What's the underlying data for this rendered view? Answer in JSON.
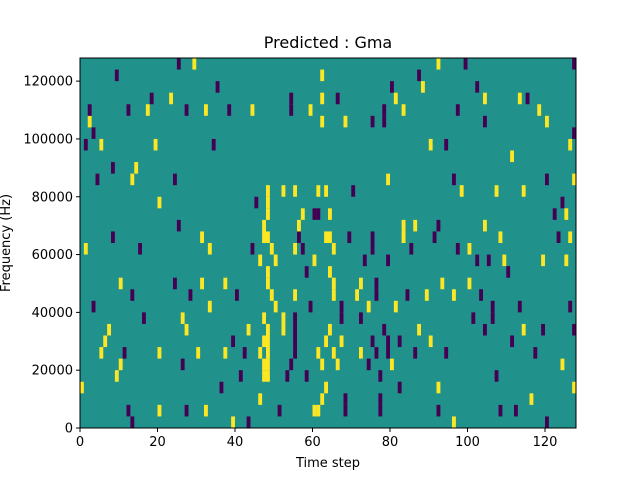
{
  "chart_data": {
    "type": "heatmap",
    "title": "Predicted : Gma",
    "xlabel": "Time step",
    "ylabel": "Frequency (Hz)",
    "xlim": [
      0,
      128
    ],
    "ylim": [
      0,
      128000
    ],
    "xticks": [
      0,
      20,
      40,
      60,
      80,
      100,
      120
    ],
    "xtick_labels": [
      "0",
      "20",
      "40",
      "60",
      "80",
      "100",
      "120"
    ],
    "yticks": [
      0,
      20000,
      40000,
      60000,
      80000,
      100000,
      120000
    ],
    "ytick_labels": [
      "0",
      "20000",
      "40000",
      "60000",
      "80000",
      "100000",
      "120000"
    ],
    "grid": false,
    "colormap": "viridis",
    "levels": [
      -1,
      0,
      1
    ],
    "colors": {
      "-1": "#440154",
      "0": "#21918c",
      "1": "#fde725"
    },
    "background_level": 0,
    "cell_height": 4000,
    "cells": [
      {
        "x": 0,
        "y": 12000,
        "v": 1
      },
      {
        "x": 1,
        "y": 60000,
        "v": 1
      },
      {
        "x": 1,
        "y": 96000,
        "v": -1
      },
      {
        "x": 2,
        "y": 104000,
        "v": 1
      },
      {
        "x": 2,
        "y": 108000,
        "v": -1
      },
      {
        "x": 3,
        "y": 40000,
        "v": -1
      },
      {
        "x": 3,
        "y": 100000,
        "v": -1
      },
      {
        "x": 4,
        "y": 84000,
        "v": -1
      },
      {
        "x": 5,
        "y": 24000,
        "v": 1
      },
      {
        "x": 5,
        "y": 96000,
        "v": 1
      },
      {
        "x": 6,
        "y": 28000,
        "v": 1
      },
      {
        "x": 7,
        "y": 32000,
        "v": 1
      },
      {
        "x": 8,
        "y": 64000,
        "v": -1
      },
      {
        "x": 8,
        "y": 88000,
        "v": -1
      },
      {
        "x": 9,
        "y": 16000,
        "v": 1
      },
      {
        "x": 9,
        "y": 120000,
        "v": -1
      },
      {
        "x": 10,
        "y": 48000,
        "v": 1
      },
      {
        "x": 10,
        "y": 20000,
        "v": 1
      },
      {
        "x": 11,
        "y": 24000,
        "v": -1
      },
      {
        "x": 12,
        "y": 4000,
        "v": -1
      },
      {
        "x": 12,
        "y": 108000,
        "v": -1
      },
      {
        "x": 13,
        "y": 0,
        "v": -1
      },
      {
        "x": 13,
        "y": 44000,
        "v": -1
      },
      {
        "x": 13,
        "y": 84000,
        "v": 1
      },
      {
        "x": 14,
        "y": 88000,
        "v": 1
      },
      {
        "x": 15,
        "y": 60000,
        "v": -1
      },
      {
        "x": 16,
        "y": 36000,
        "v": -1
      },
      {
        "x": 17,
        "y": 108000,
        "v": 1
      },
      {
        "x": 18,
        "y": 112000,
        "v": -1
      },
      {
        "x": 19,
        "y": 96000,
        "v": 1
      },
      {
        "x": 20,
        "y": 24000,
        "v": 1
      },
      {
        "x": 20,
        "y": 4000,
        "v": 1
      },
      {
        "x": 20,
        "y": 76000,
        "v": 1
      },
      {
        "x": 23,
        "y": 112000,
        "v": 1
      },
      {
        "x": 24,
        "y": 48000,
        "v": -1
      },
      {
        "x": 24,
        "y": 84000,
        "v": -1
      },
      {
        "x": 25,
        "y": 68000,
        "v": -1
      },
      {
        "x": 25,
        "y": 124000,
        "v": -1
      },
      {
        "x": 26,
        "y": 36000,
        "v": 1
      },
      {
        "x": 26,
        "y": 20000,
        "v": -1
      },
      {
        "x": 27,
        "y": 4000,
        "v": -1
      },
      {
        "x": 27,
        "y": 32000,
        "v": 1
      },
      {
        "x": 27,
        "y": 108000,
        "v": -1
      },
      {
        "x": 28,
        "y": 44000,
        "v": -1
      },
      {
        "x": 29,
        "y": 124000,
        "v": 1
      },
      {
        "x": 30,
        "y": 24000,
        "v": 1
      },
      {
        "x": 31,
        "y": 64000,
        "v": 1
      },
      {
        "x": 31,
        "y": 48000,
        "v": 1
      },
      {
        "x": 32,
        "y": 108000,
        "v": 1
      },
      {
        "x": 32,
        "y": 4000,
        "v": 1
      },
      {
        "x": 33,
        "y": 40000,
        "v": 1
      },
      {
        "x": 33,
        "y": 60000,
        "v": 1
      },
      {
        "x": 34,
        "y": 96000,
        "v": -1
      },
      {
        "x": 35,
        "y": 116000,
        "v": -1
      },
      {
        "x": 36,
        "y": 12000,
        "v": -1
      },
      {
        "x": 37,
        "y": 48000,
        "v": 1
      },
      {
        "x": 37,
        "y": 24000,
        "v": 1
      },
      {
        "x": 38,
        "y": 108000,
        "v": -1
      },
      {
        "x": 39,
        "y": 0,
        "v": 1
      },
      {
        "x": 39,
        "y": 28000,
        "v": -1
      },
      {
        "x": 40,
        "y": 44000,
        "v": -1
      },
      {
        "x": 41,
        "y": 16000,
        "v": -1
      },
      {
        "x": 42,
        "y": 24000,
        "v": -1
      },
      {
        "x": 43,
        "y": 32000,
        "v": 1
      },
      {
        "x": 43,
        "y": 0,
        "v": -1
      },
      {
        "x": 44,
        "y": 60000,
        "v": -1
      },
      {
        "x": 44,
        "y": 108000,
        "v": 1
      },
      {
        "x": 45,
        "y": 76000,
        "v": -1
      },
      {
        "x": 46,
        "y": 24000,
        "v": 1
      },
      {
        "x": 46,
        "y": 8000,
        "v": 1
      },
      {
        "x": 46,
        "y": 56000,
        "v": 1
      },
      {
        "x": 47,
        "y": 16000,
        "v": 1
      },
      {
        "x": 47,
        "y": 20000,
        "v": 1
      },
      {
        "x": 47,
        "y": 28000,
        "v": 1
      },
      {
        "x": 47,
        "y": 36000,
        "v": 1
      },
      {
        "x": 47,
        "y": 64000,
        "v": 1
      },
      {
        "x": 47,
        "y": 68000,
        "v": 1
      },
      {
        "x": 48,
        "y": 16000,
        "v": 1
      },
      {
        "x": 48,
        "y": 20000,
        "v": 1
      },
      {
        "x": 48,
        "y": 24000,
        "v": 1
      },
      {
        "x": 48,
        "y": 28000,
        "v": 1
      },
      {
        "x": 48,
        "y": 32000,
        "v": 1
      },
      {
        "x": 48,
        "y": 48000,
        "v": 1
      },
      {
        "x": 48,
        "y": 52000,
        "v": 1
      },
      {
        "x": 48,
        "y": 64000,
        "v": 1
      },
      {
        "x": 48,
        "y": 72000,
        "v": 1
      },
      {
        "x": 48,
        "y": 76000,
        "v": 1
      },
      {
        "x": 48,
        "y": 80000,
        "v": 1
      },
      {
        "x": 49,
        "y": 44000,
        "v": 1
      },
      {
        "x": 49,
        "y": 60000,
        "v": 1
      },
      {
        "x": 50,
        "y": 40000,
        "v": 1
      },
      {
        "x": 50,
        "y": 56000,
        "v": 1
      },
      {
        "x": 51,
        "y": 4000,
        "v": -1
      },
      {
        "x": 52,
        "y": 32000,
        "v": 1
      },
      {
        "x": 52,
        "y": 36000,
        "v": 1
      },
      {
        "x": 52,
        "y": 80000,
        "v": 1
      },
      {
        "x": 53,
        "y": 16000,
        "v": -1
      },
      {
        "x": 54,
        "y": 20000,
        "v": -1
      },
      {
        "x": 54,
        "y": 108000,
        "v": -1
      },
      {
        "x": 54,
        "y": 112000,
        "v": -1
      },
      {
        "x": 55,
        "y": 24000,
        "v": -1
      },
      {
        "x": 55,
        "y": 28000,
        "v": -1
      },
      {
        "x": 55,
        "y": 32000,
        "v": -1
      },
      {
        "x": 55,
        "y": 36000,
        "v": -1
      },
      {
        "x": 55,
        "y": 44000,
        "v": 1
      },
      {
        "x": 55,
        "y": 60000,
        "v": 1
      },
      {
        "x": 55,
        "y": 80000,
        "v": 1
      },
      {
        "x": 56,
        "y": 64000,
        "v": -1
      },
      {
        "x": 56,
        "y": 68000,
        "v": 1
      },
      {
        "x": 57,
        "y": 72000,
        "v": 1
      },
      {
        "x": 57,
        "y": 60000,
        "v": -1
      },
      {
        "x": 58,
        "y": 52000,
        "v": -1
      },
      {
        "x": 58,
        "y": 16000,
        "v": -1
      },
      {
        "x": 59,
        "y": 40000,
        "v": -1
      },
      {
        "x": 59,
        "y": 108000,
        "v": 1
      },
      {
        "x": 60,
        "y": 4000,
        "v": 1
      },
      {
        "x": 60,
        "y": 56000,
        "v": 1
      },
      {
        "x": 60,
        "y": 72000,
        "v": -1
      },
      {
        "x": 61,
        "y": 4000,
        "v": 1
      },
      {
        "x": 61,
        "y": 24000,
        "v": 1
      },
      {
        "x": 61,
        "y": 72000,
        "v": -1
      },
      {
        "x": 61,
        "y": 80000,
        "v": 1
      },
      {
        "x": 62,
        "y": 8000,
        "v": 1
      },
      {
        "x": 62,
        "y": 20000,
        "v": 1
      },
      {
        "x": 62,
        "y": 112000,
        "v": 1
      },
      {
        "x": 62,
        "y": 120000,
        "v": 1
      },
      {
        "x": 62,
        "y": 104000,
        "v": 1
      },
      {
        "x": 63,
        "y": 12000,
        "v": 1
      },
      {
        "x": 63,
        "y": 28000,
        "v": 1
      },
      {
        "x": 63,
        "y": 64000,
        "v": 1
      },
      {
        "x": 63,
        "y": 80000,
        "v": 1
      },
      {
        "x": 64,
        "y": 32000,
        "v": 1
      },
      {
        "x": 64,
        "y": 52000,
        "v": 1
      },
      {
        "x": 64,
        "y": 64000,
        "v": 1
      },
      {
        "x": 64,
        "y": 72000,
        "v": 1
      },
      {
        "x": 65,
        "y": 24000,
        "v": 1
      },
      {
        "x": 65,
        "y": 48000,
        "v": 1
      },
      {
        "x": 65,
        "y": 60000,
        "v": 1
      },
      {
        "x": 65,
        "y": 44000,
        "v": 1
      },
      {
        "x": 66,
        "y": 20000,
        "v": 1
      },
      {
        "x": 66,
        "y": 112000,
        "v": -1
      },
      {
        "x": 67,
        "y": 28000,
        "v": 1
      },
      {
        "x": 67,
        "y": 40000,
        "v": -1
      },
      {
        "x": 67,
        "y": 36000,
        "v": -1
      },
      {
        "x": 68,
        "y": 4000,
        "v": -1
      },
      {
        "x": 68,
        "y": 8000,
        "v": -1
      },
      {
        "x": 68,
        "y": 104000,
        "v": 1
      },
      {
        "x": 69,
        "y": 64000,
        "v": -1
      },
      {
        "x": 70,
        "y": 80000,
        "v": -1
      },
      {
        "x": 71,
        "y": 44000,
        "v": 1
      },
      {
        "x": 72,
        "y": 48000,
        "v": 1
      },
      {
        "x": 72,
        "y": 24000,
        "v": 1
      },
      {
        "x": 72,
        "y": 36000,
        "v": -1
      },
      {
        "x": 73,
        "y": 56000,
        "v": -1
      },
      {
        "x": 74,
        "y": 40000,
        "v": 1
      },
      {
        "x": 74,
        "y": 20000,
        "v": -1
      },
      {
        "x": 75,
        "y": 28000,
        "v": -1
      },
      {
        "x": 75,
        "y": 60000,
        "v": -1
      },
      {
        "x": 75,
        "y": 64000,
        "v": -1
      },
      {
        "x": 75,
        "y": 104000,
        "v": -1
      },
      {
        "x": 76,
        "y": 24000,
        "v": -1
      },
      {
        "x": 76,
        "y": 48000,
        "v": -1
      },
      {
        "x": 76,
        "y": 44000,
        "v": -1
      },
      {
        "x": 77,
        "y": 4000,
        "v": -1
      },
      {
        "x": 77,
        "y": 8000,
        "v": -1
      },
      {
        "x": 77,
        "y": 16000,
        "v": -1
      },
      {
        "x": 78,
        "y": 32000,
        "v": -1
      },
      {
        "x": 78,
        "y": 108000,
        "v": -1
      },
      {
        "x": 78,
        "y": 104000,
        "v": -1
      },
      {
        "x": 79,
        "y": 24000,
        "v": -1
      },
      {
        "x": 79,
        "y": 28000,
        "v": -1
      },
      {
        "x": 79,
        "y": 56000,
        "v": -1
      },
      {
        "x": 79,
        "y": 84000,
        "v": 1
      },
      {
        "x": 80,
        "y": 20000,
        "v": 1
      },
      {
        "x": 80,
        "y": 116000,
        "v": -1
      },
      {
        "x": 81,
        "y": 40000,
        "v": 1
      },
      {
        "x": 81,
        "y": 112000,
        "v": 1
      },
      {
        "x": 82,
        "y": 12000,
        "v": -1
      },
      {
        "x": 82,
        "y": 28000,
        "v": -1
      },
      {
        "x": 83,
        "y": 64000,
        "v": 1
      },
      {
        "x": 83,
        "y": 68000,
        "v": 1
      },
      {
        "x": 83,
        "y": 108000,
        "v": 1
      },
      {
        "x": 84,
        "y": 44000,
        "v": -1
      },
      {
        "x": 85,
        "y": 60000,
        "v": -1
      },
      {
        "x": 86,
        "y": 24000,
        "v": -1
      },
      {
        "x": 86,
        "y": 68000,
        "v": 1
      },
      {
        "x": 87,
        "y": 32000,
        "v": 1
      },
      {
        "x": 87,
        "y": 120000,
        "v": -1
      },
      {
        "x": 88,
        "y": 116000,
        "v": 1
      },
      {
        "x": 89,
        "y": 44000,
        "v": 1
      },
      {
        "x": 90,
        "y": 28000,
        "v": 1
      },
      {
        "x": 90,
        "y": 96000,
        "v": 1
      },
      {
        "x": 91,
        "y": 64000,
        "v": -1
      },
      {
        "x": 92,
        "y": 4000,
        "v": -1
      },
      {
        "x": 92,
        "y": 12000,
        "v": 1
      },
      {
        "x": 92,
        "y": 68000,
        "v": -1
      },
      {
        "x": 92,
        "y": 124000,
        "v": 1
      },
      {
        "x": 93,
        "y": 48000,
        "v": 1
      },
      {
        "x": 94,
        "y": 24000,
        "v": -1
      },
      {
        "x": 94,
        "y": 96000,
        "v": -1
      },
      {
        "x": 96,
        "y": 0,
        "v": 1
      },
      {
        "x": 96,
        "y": 44000,
        "v": 1
      },
      {
        "x": 96,
        "y": 84000,
        "v": -1
      },
      {
        "x": 97,
        "y": 60000,
        "v": -1
      },
      {
        "x": 97,
        "y": 108000,
        "v": -1
      },
      {
        "x": 98,
        "y": 80000,
        "v": 1
      },
      {
        "x": 99,
        "y": 124000,
        "v": -1
      },
      {
        "x": 100,
        "y": 48000,
        "v": 1
      },
      {
        "x": 100,
        "y": 60000,
        "v": 1
      },
      {
        "x": 101,
        "y": 36000,
        "v": -1
      },
      {
        "x": 102,
        "y": 56000,
        "v": -1
      },
      {
        "x": 102,
        "y": 116000,
        "v": -1
      },
      {
        "x": 103,
        "y": 44000,
        "v": -1
      },
      {
        "x": 104,
        "y": 68000,
        "v": 1
      },
      {
        "x": 104,
        "y": 32000,
        "v": -1
      },
      {
        "x": 104,
        "y": 112000,
        "v": 1
      },
      {
        "x": 104,
        "y": 104000,
        "v": -1
      },
      {
        "x": 105,
        "y": 56000,
        "v": -1
      },
      {
        "x": 106,
        "y": 36000,
        "v": -1
      },
      {
        "x": 106,
        "y": 40000,
        "v": -1
      },
      {
        "x": 107,
        "y": 16000,
        "v": -1
      },
      {
        "x": 107,
        "y": 80000,
        "v": 1
      },
      {
        "x": 108,
        "y": 4000,
        "v": -1
      },
      {
        "x": 108,
        "y": 64000,
        "v": 1
      },
      {
        "x": 109,
        "y": 56000,
        "v": 1
      },
      {
        "x": 110,
        "y": 52000,
        "v": -1
      },
      {
        "x": 111,
        "y": 28000,
        "v": -1
      },
      {
        "x": 111,
        "y": 92000,
        "v": 1
      },
      {
        "x": 112,
        "y": 4000,
        "v": -1
      },
      {
        "x": 113,
        "y": 40000,
        "v": -1
      },
      {
        "x": 113,
        "y": 112000,
        "v": 1
      },
      {
        "x": 114,
        "y": 32000,
        "v": 1
      },
      {
        "x": 114,
        "y": 80000,
        "v": 1
      },
      {
        "x": 115,
        "y": 112000,
        "v": -1
      },
      {
        "x": 116,
        "y": 8000,
        "v": 1
      },
      {
        "x": 117,
        "y": 24000,
        "v": -1
      },
      {
        "x": 118,
        "y": 108000,
        "v": 1
      },
      {
        "x": 119,
        "y": 56000,
        "v": 1
      },
      {
        "x": 119,
        "y": 32000,
        "v": -1
      },
      {
        "x": 120,
        "y": 0,
        "v": -1
      },
      {
        "x": 120,
        "y": 104000,
        "v": 1
      },
      {
        "x": 120,
        "y": 84000,
        "v": -1
      },
      {
        "x": 122,
        "y": 72000,
        "v": -1
      },
      {
        "x": 123,
        "y": 64000,
        "v": -1
      },
      {
        "x": 124,
        "y": 76000,
        "v": -1
      },
      {
        "x": 124,
        "y": 20000,
        "v": 1
      },
      {
        "x": 125,
        "y": 72000,
        "v": 1
      },
      {
        "x": 125,
        "y": 56000,
        "v": 1
      },
      {
        "x": 126,
        "y": 40000,
        "v": -1
      },
      {
        "x": 126,
        "y": 64000,
        "v": 1
      },
      {
        "x": 126,
        "y": 96000,
        "v": 1
      },
      {
        "x": 127,
        "y": 12000,
        "v": 1
      },
      {
        "x": 127,
        "y": 32000,
        "v": -1
      },
      {
        "x": 127,
        "y": 84000,
        "v": 1
      },
      {
        "x": 127,
        "y": 124000,
        "v": -1
      },
      {
        "x": 127,
        "y": 100000,
        "v": -1
      }
    ]
  }
}
